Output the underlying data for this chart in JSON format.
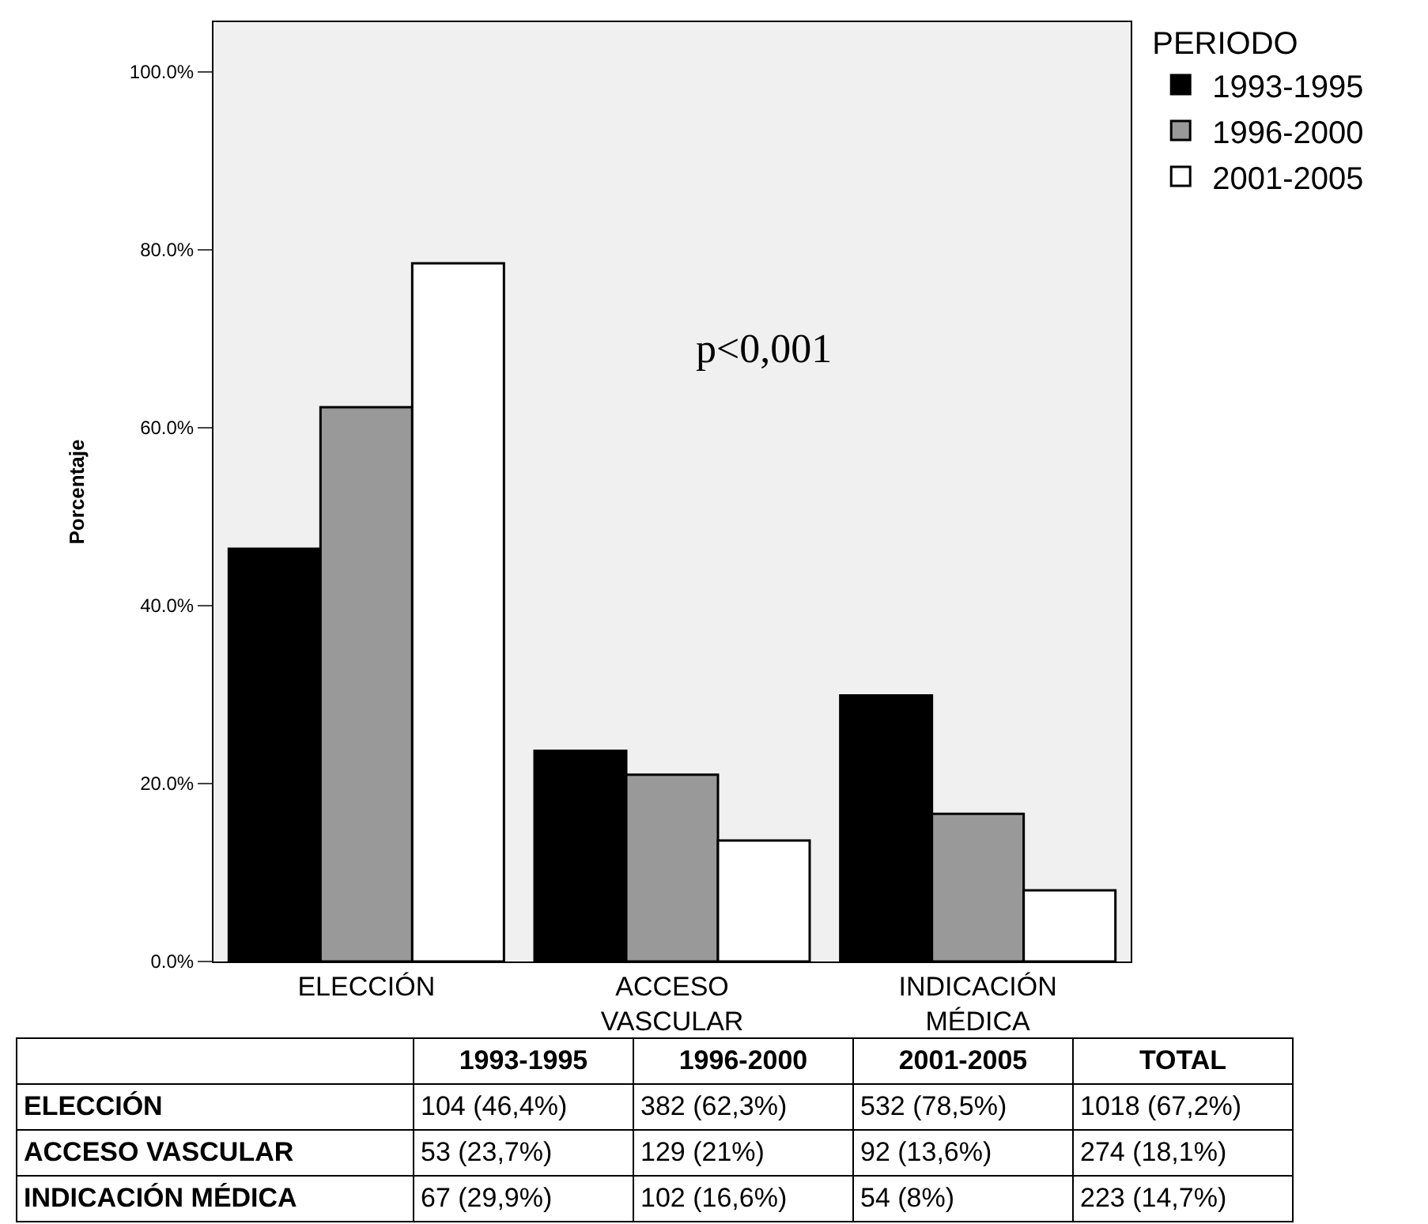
{
  "chart_data": {
    "type": "bar",
    "ylabel": "Porcentaje",
    "legend_title": "PERIODO",
    "legend": "top right",
    "grid": false,
    "categories": [
      "ELECCIÓN",
      "ACCESO VASCULAR",
      "INDICACIÓN MÉDICA"
    ],
    "ylim": [
      0,
      105.6
    ],
    "yticks": [
      {
        "value": 0,
        "label": "0.0%"
      },
      {
        "value": 20,
        "label": "20.0%"
      },
      {
        "value": 40,
        "label": "40.0%"
      },
      {
        "value": 60,
        "label": "60.0%"
      },
      {
        "value": 80,
        "label": "80.0%"
      },
      {
        "value": 100,
        "label": "100.0%"
      }
    ],
    "series": [
      {
        "name": "1993-1995",
        "color": "#000000",
        "values": [
          46.4,
          23.7,
          29.9
        ]
      },
      {
        "name": "1996-2000",
        "color": "#999999",
        "values": [
          62.3,
          21,
          16.6
        ]
      },
      {
        "name": "2001-2005",
        "color": "#ffffff",
        "values": [
          78.5,
          13.6,
          8
        ]
      }
    ],
    "annotations": [
      "p<0,001",
      "TOTAL",
      "104 (46,4%)",
      "382 (62,3%)",
      "532 (78,5%)",
      "1018 (67,2%)",
      "53 (23,7%)",
      "129 (21%)",
      "92 (13,6%)",
      "274 (18,1%)",
      "67 (29,9%)",
      "102 (16,6%)",
      "54 (8%)",
      "223 (14,7%)"
    ]
  }
}
